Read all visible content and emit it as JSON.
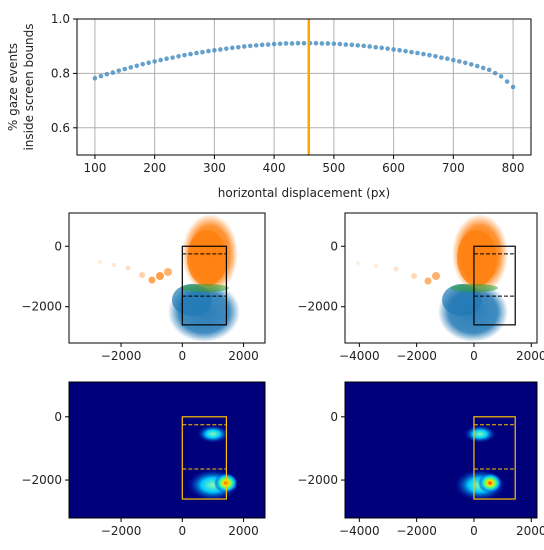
{
  "chart_data": [
    {
      "type": "scatter",
      "xlabel": "horizontal displacement (px)",
      "ylabel": "% gaze events\ninside screen bounds",
      "xlim": [
        70,
        830
      ],
      "ylim": [
        0.5,
        1.0
      ],
      "xticks": [
        100,
        200,
        300,
        400,
        500,
        600,
        700,
        800
      ],
      "yticks": [
        0.6,
        0.8,
        1.0
      ],
      "grid": true,
      "marker_color": "#4a90c2",
      "vline": {
        "x": 458,
        "color": "#ffa500"
      },
      "x": [
        100,
        110,
        120,
        130,
        140,
        150,
        160,
        170,
        180,
        190,
        200,
        210,
        220,
        230,
        240,
        250,
        260,
        270,
        280,
        290,
        300,
        310,
        320,
        330,
        340,
        350,
        360,
        370,
        380,
        390,
        400,
        410,
        420,
        430,
        440,
        450,
        460,
        470,
        480,
        490,
        500,
        510,
        520,
        530,
        540,
        550,
        560,
        570,
        580,
        590,
        600,
        610,
        620,
        630,
        640,
        650,
        660,
        670,
        680,
        690,
        700,
        710,
        720,
        730,
        740,
        750,
        760,
        770,
        780,
        790,
        800
      ],
      "y": [
        0.782,
        0.79,
        0.797,
        0.803,
        0.81,
        0.816,
        0.822,
        0.828,
        0.834,
        0.839,
        0.844,
        0.849,
        0.854,
        0.858,
        0.863,
        0.867,
        0.871,
        0.875,
        0.878,
        0.882,
        0.885,
        0.888,
        0.891,
        0.894,
        0.896,
        0.899,
        0.901,
        0.903,
        0.905,
        0.906,
        0.908,
        0.909,
        0.91,
        0.91,
        0.911,
        0.911,
        0.911,
        0.911,
        0.91,
        0.91,
        0.909,
        0.908,
        0.906,
        0.905,
        0.903,
        0.901,
        0.899,
        0.896,
        0.894,
        0.891,
        0.888,
        0.885,
        0.882,
        0.878,
        0.875,
        0.871,
        0.867,
        0.863,
        0.858,
        0.854,
        0.849,
        0.844,
        0.839,
        0.833,
        0.827,
        0.82,
        0.813,
        0.801,
        0.789,
        0.77,
        0.75
      ]
    },
    {
      "type": "scatter",
      "xlim": [
        -3700,
        2700
      ],
      "ylim": [
        -3200,
        1100
      ],
      "xticks": [
        -2000,
        0,
        2000
      ],
      "yticks": [
        -2000,
        0
      ],
      "series": [
        {
          "color": "#1f77b4"
        },
        {
          "color": "#ff7f0e"
        },
        {
          "color": "#2ca02c"
        }
      ],
      "screen_rect": {
        "x0": 0,
        "x1": 1440,
        "y0": -2600,
        "y1": 0
      },
      "dashed_lines_y": [
        -250,
        -1650
      ]
    },
    {
      "type": "scatter",
      "xlim": [
        -4500,
        2200
      ],
      "ylim": [
        -3200,
        1100
      ],
      "xticks": [
        -4000,
        -2000,
        0,
        2000
      ],
      "yticks": [
        -2000,
        0
      ],
      "series": [
        {
          "color": "#1f77b4"
        },
        {
          "color": "#ff7f0e"
        },
        {
          "color": "#2ca02c"
        }
      ],
      "screen_rect": {
        "x0": 0,
        "x1": 1440,
        "y0": -2600,
        "y1": 0
      },
      "dashed_lines_y": [
        -250,
        -1650
      ]
    },
    {
      "type": "heatmap",
      "xlim": [
        -3700,
        2700
      ],
      "ylim": [
        -3200,
        1100
      ],
      "xticks": [
        -2000,
        0,
        2000
      ],
      "yticks": [
        -2000,
        0
      ],
      "background": "#00007a",
      "rect_color": "#ffc000",
      "screen_rect": {
        "x0": 0,
        "x1": 1440,
        "y0": -2600,
        "y1": 0
      },
      "dashed_lines_y": [
        -250,
        -1650
      ]
    },
    {
      "type": "heatmap",
      "xlim": [
        -4500,
        2200
      ],
      "ylim": [
        -3200,
        1100
      ],
      "xticks": [
        -4000,
        -2000,
        0,
        2000
      ],
      "yticks": [
        -2000,
        0
      ],
      "background": "#00007a",
      "rect_color": "#ffc000",
      "screen_rect": {
        "x0": 0,
        "x1": 1440,
        "y0": -2600,
        "y1": 0
      },
      "dashed_lines_y": [
        -250,
        -1650
      ]
    }
  ]
}
